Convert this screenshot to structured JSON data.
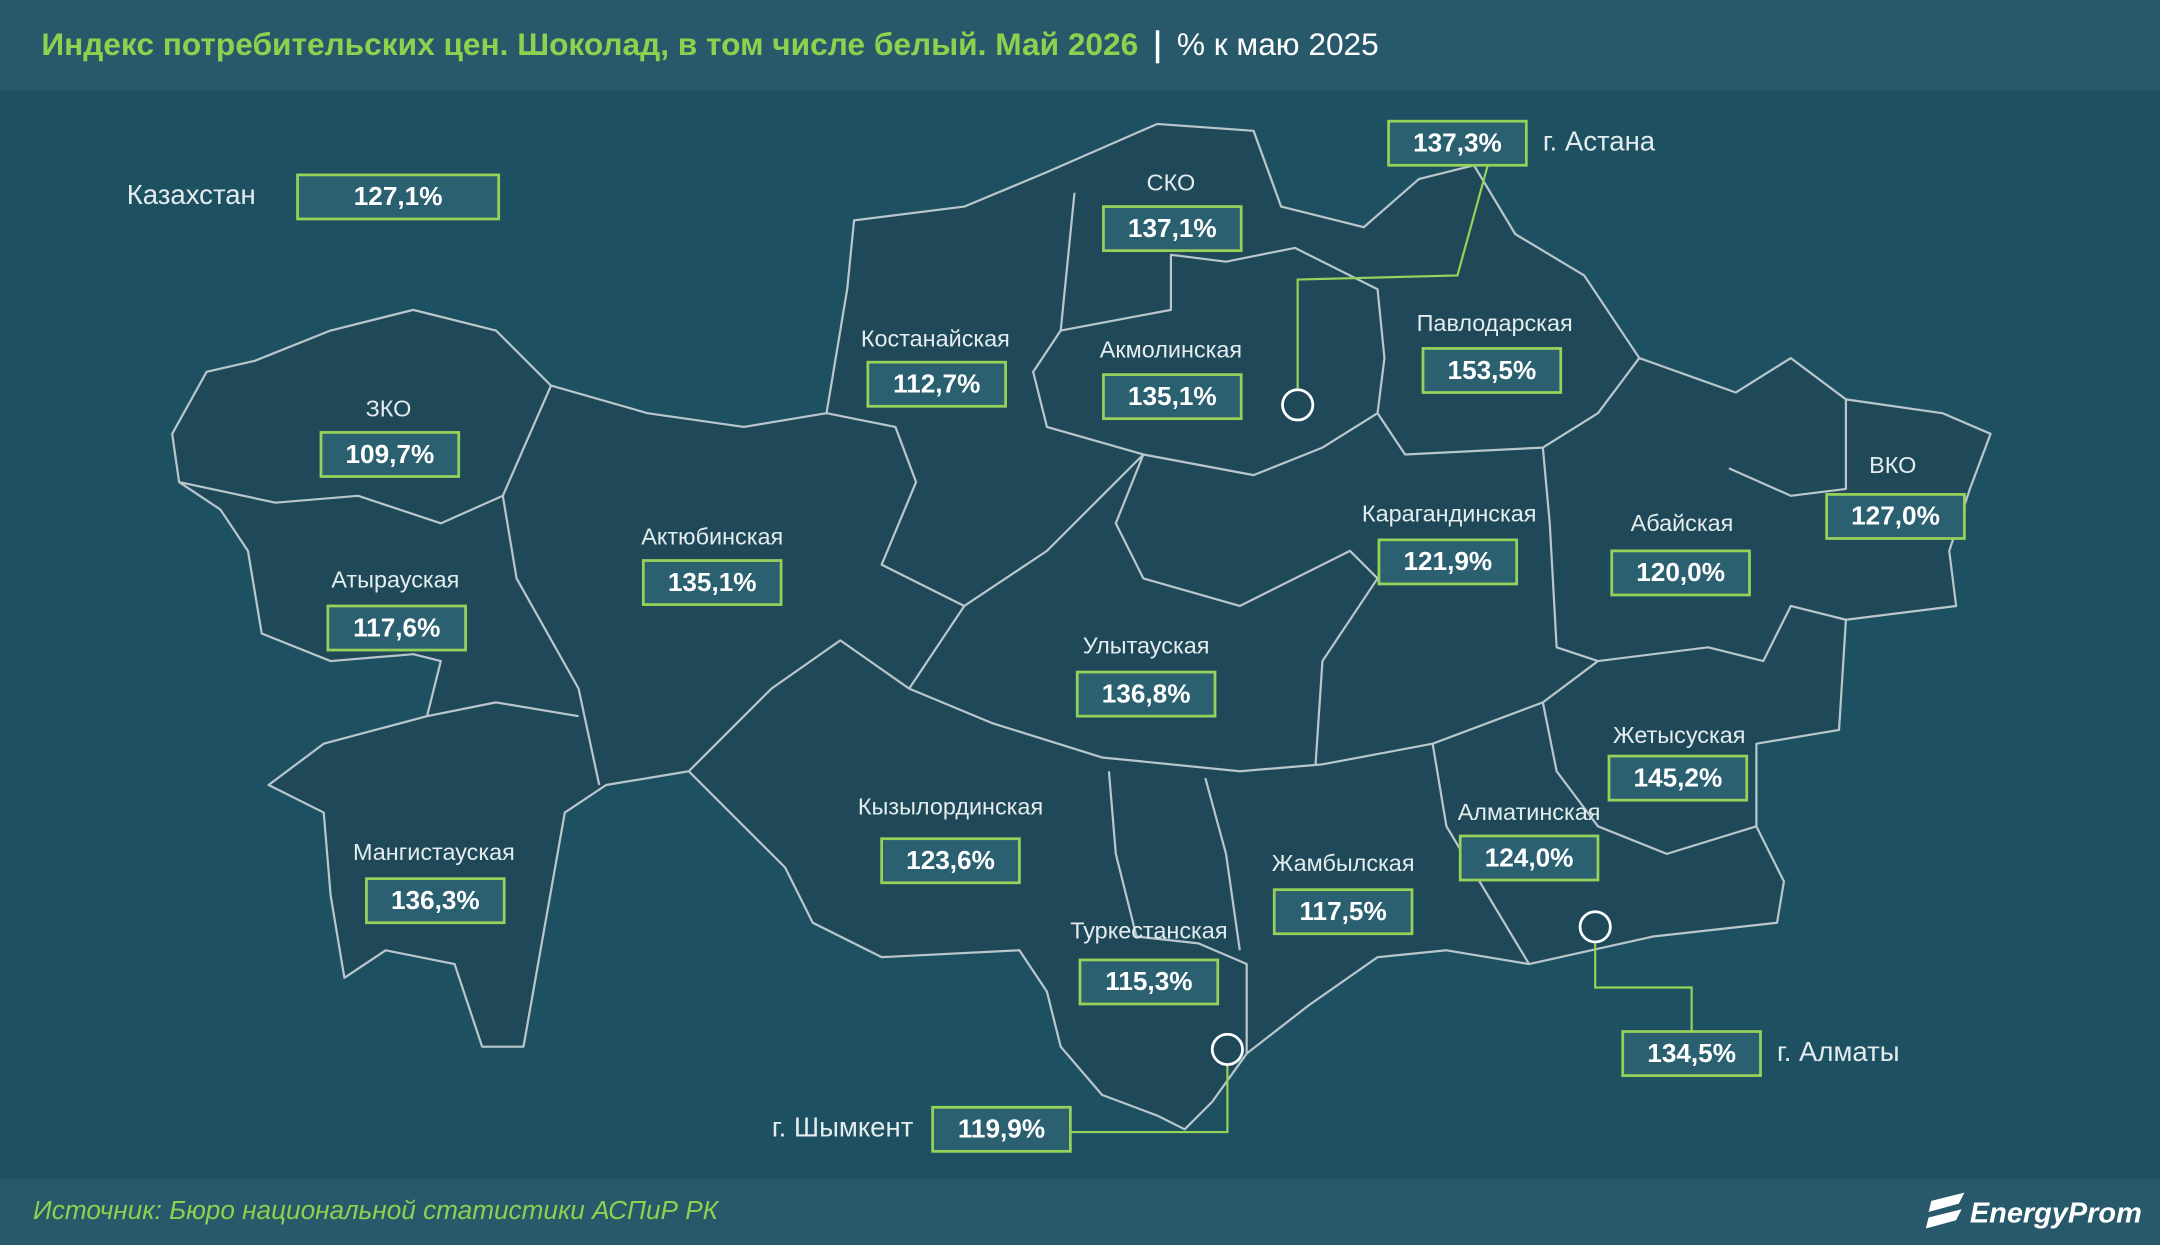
{
  "header": {
    "title": "Индекс потребительских цен. Шоколад, в том числе белый. Май 2026",
    "subtitle": "% к маю 2025"
  },
  "country": {
    "name": "Казахстан",
    "value": "127,1%"
  },
  "regions": [
    {
      "name": "СКО",
      "value": "137,1%"
    },
    {
      "name": "Костанайская",
      "value": "112,7%"
    },
    {
      "name": "Акмолинская",
      "value": "135,1%"
    },
    {
      "name": "Павлодарская",
      "value": "153,5%"
    },
    {
      "name": "ЗКО",
      "value": "109,7%"
    },
    {
      "name": "ВКО",
      "value": "127,0%"
    },
    {
      "name": "Актюбинская",
      "value": "135,1%"
    },
    {
      "name": "Карагандинская",
      "value": "121,9%"
    },
    {
      "name": "Абайская",
      "value": "120,0%"
    },
    {
      "name": "Атырауская",
      "value": "117,6%"
    },
    {
      "name": "Улытауская",
      "value": "136,8%"
    },
    {
      "name": "Жетысуская",
      "value": "145,2%"
    },
    {
      "name": "Кызылординская",
      "value": "123,6%"
    },
    {
      "name": "Алматинская",
      "value": "124,0%"
    },
    {
      "name": "Мангистауская",
      "value": "136,3%"
    },
    {
      "name": "Жамбылская",
      "value": "117,5%"
    },
    {
      "name": "Туркестанская",
      "value": "115,3%"
    }
  ],
  "cities": [
    {
      "name": "г. Астана",
      "value": "137,3%"
    },
    {
      "name": "г. Алматы",
      "value": "134,5%"
    },
    {
      "name": "г. Шымкент",
      "value": "119,9%"
    }
  ],
  "footer": {
    "source": "Источник: Бюро национальной статистики АСПиР РК",
    "logo": "EnergyProm"
  }
}
